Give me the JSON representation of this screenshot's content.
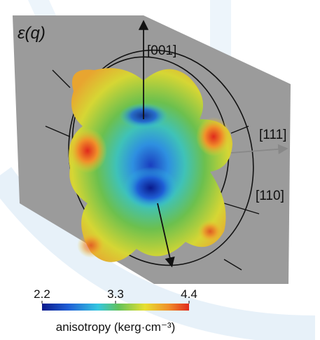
{
  "chart_data": {
    "type": "surface",
    "title": "ε(q)",
    "annotations": [
      "[001]",
      "[111]",
      "[110]"
    ],
    "colorbar": {
      "label": "anisotropy (kerg·cm⁻³)",
      "clim": [
        2.2,
        4.4
      ],
      "cticks": [
        2.2,
        3.3,
        4.4
      ]
    }
  }
}
